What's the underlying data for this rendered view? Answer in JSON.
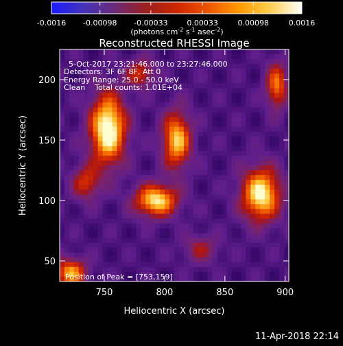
{
  "colorbar": {
    "tick_labels": [
      "-0.0016",
      "-0.00098",
      "-0.00033",
      "0.00033",
      "0.00098",
      "0.0016"
    ],
    "ticks": [
      -0.0016,
      -0.00098,
      -0.00033,
      0.00033,
      0.00098,
      0.0016
    ],
    "range": [
      -0.0016,
      0.0016
    ],
    "unit_label": "(photons cm",
    "unit_sup1": "-2",
    "unit_mid1": " s",
    "unit_sup2": "-1",
    "unit_mid2": " asec",
    "unit_sup3": "-2",
    "unit_end": ")",
    "colors": [
      "#1a1aff",
      "#4433bb",
      "#6a2a7a",
      "#9a1f1f",
      "#cc2600",
      "#ee5500",
      "#ff9a00",
      "#ffd050",
      "#ffffff"
    ]
  },
  "chart_data": {
    "type": "heatmap",
    "title": "Reconstructed RHESSI Image",
    "xlabel": "Heliocentric X (arcsec)",
    "ylabel": "Heliocentric Y (arcsec)",
    "xlim": [
      713,
      903
    ],
    "ylim": [
      33,
      225
    ],
    "x_ticks": [
      750,
      800,
      850,
      900
    ],
    "y_ticks": [
      50,
      100,
      150,
      200
    ],
    "sources": [
      {
        "x": 753,
        "y": 159,
        "sx": 10,
        "sy": 20,
        "amp": 1.0
      },
      {
        "x": 793,
        "y": 100,
        "sx": 12,
        "sy": 9,
        "amp": 0.85
      },
      {
        "x": 810,
        "y": 150,
        "sx": 8,
        "sy": 16,
        "amp": 0.78
      },
      {
        "x": 880,
        "y": 105,
        "sx": 11,
        "sy": 15,
        "amp": 0.9
      },
      {
        "x": 893,
        "y": 195,
        "sx": 6,
        "sy": 13,
        "amp": 0.6
      },
      {
        "x": 722,
        "y": 40,
        "sx": 9,
        "sy": 8,
        "amp": 0.7
      },
      {
        "x": 780,
        "y": 205,
        "sx": 8,
        "sy": 8,
        "amp": 0.45
      },
      {
        "x": 735,
        "y": 115,
        "sx": 8,
        "sy": 10,
        "amp": 0.45
      },
      {
        "x": 830,
        "y": 60,
        "sx": 10,
        "sy": 8,
        "amp": 0.3
      }
    ],
    "annotations": {
      "time": "5-Oct-2017 23:21:46.000 to 23:27:46.000",
      "detectors": "Detectors: 3F 6F 8F, Att 0",
      "energy": "Energy Range: 25.0 - 50.0 keV",
      "clean": "Clean    Total counts: 1.01E+04",
      "peak": "Position of Peak = [753,159]"
    }
  },
  "footer": {
    "date": "11-Apr-2018 22:14"
  }
}
